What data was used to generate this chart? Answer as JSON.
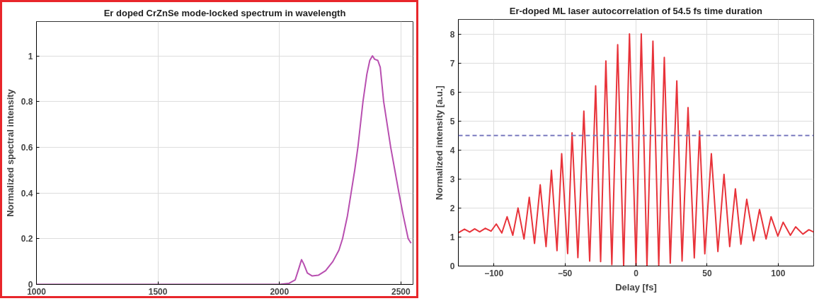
{
  "chart_data": [
    {
      "type": "line",
      "title": "Er doped CrZnSe mode-locked spectrum in wavelength",
      "ylabel": "Normalized spectral intensity",
      "x": [
        1000,
        1500,
        2000,
        2040,
        2065,
        2080,
        2091,
        2100,
        2115,
        2135,
        2160,
        2190,
        2220,
        2245,
        2260,
        2280,
        2295,
        2310,
        2323,
        2344,
        2360,
        2372,
        2383,
        2392,
        2405,
        2415,
        2429,
        2458,
        2475,
        2492,
        2510,
        2530,
        2542
      ],
      "series": [
        {
          "color": "#b84fb0",
          "values": [
            0,
            0,
            0,
            0.005,
            0.02,
            0.07,
            0.108,
            0.09,
            0.05,
            0.037,
            0.04,
            0.06,
            0.1,
            0.15,
            0.2,
            0.3,
            0.4,
            0.5,
            0.6,
            0.8,
            0.92,
            0.98,
            1.0,
            0.985,
            0.98,
            0.95,
            0.8,
            0.6,
            0.5,
            0.4,
            0.3,
            0.2,
            0.18
          ]
        }
      ],
      "xlim": [
        1000,
        2550
      ],
      "ylim": [
        0,
        1.15
      ],
      "xticks": [
        1000,
        1500,
        2000,
        2500
      ],
      "yticks": [
        0,
        0.2,
        0.4,
        0.6,
        0.8,
        1
      ],
      "grid": true,
      "line_style": "solid",
      "marker": "none"
    },
    {
      "type": "line",
      "title": "Er-doped ML laser autocorrelation of 54.5 fs time duration",
      "xlabel": "Delay [fs]",
      "ylabel": "Normalized intensity [a.u.]",
      "x": [
        -125,
        -120.7,
        -117,
        -113.5,
        -110,
        -106,
        -102,
        -98.3,
        -94.4,
        -90.7,
        -86.7,
        -83,
        -78.8,
        -75.1,
        -71.4,
        -67.4,
        -63.3,
        -59.5,
        -55.6,
        -52.3,
        -48.1,
        -45,
        -40.9,
        -36.7,
        -32.6,
        -28.4,
        -24.9,
        -21.2,
        -17,
        -12.9,
        -8.7,
        -4.6,
        0,
        3.7,
        7.7,
        11.9,
        16,
        19.9,
        24.1,
        28.7,
        32.4,
        36.6,
        41,
        44.7,
        48.4,
        53,
        57.6,
        61.9,
        65.9,
        69.9,
        73.8,
        77.9,
        82.8,
        86.9,
        91.5,
        95,
        99.8,
        103.5,
        108.6,
        112.3,
        117.4,
        121.6,
        125
      ],
      "series": [
        {
          "color": "#e8333a",
          "values": [
            1.15,
            1.27,
            1.17,
            1.28,
            1.18,
            1.3,
            1.2,
            1.45,
            1.14,
            1.7,
            1.06,
            2.0,
            0.93,
            2.37,
            0.78,
            2.8,
            0.67,
            3.3,
            0.53,
            3.87,
            0.43,
            4.59,
            0.29,
            5.34,
            0.17,
            6.21,
            0.15,
            7.07,
            0.05,
            7.63,
            0,
            8.0,
            0,
            8.0,
            0,
            7.75,
            0.03,
            7.19,
            0.1,
            6.38,
            0.17,
            5.46,
            0.28,
            4.66,
            0.42,
            3.87,
            0.5,
            3.16,
            0.67,
            2.66,
            0.75,
            2.3,
            0.87,
            1.95,
            0.93,
            1.7,
            1.03,
            1.51,
            1.06,
            1.35,
            1.1,
            1.25,
            1.17
          ]
        }
      ],
      "ref_lines": [
        {
          "axis": "y",
          "value": 4.5,
          "color": "#7b7bbf",
          "line_style": "dashed"
        }
      ],
      "xlim": [
        -125,
        125
      ],
      "ylim": [
        0,
        8.5
      ],
      "xticks": [
        -100,
        -50,
        0,
        50,
        100
      ],
      "yticks": [
        0,
        1,
        2,
        3,
        4,
        5,
        6,
        7,
        8
      ],
      "grid": true,
      "line_style": "solid",
      "marker": "none"
    }
  ]
}
